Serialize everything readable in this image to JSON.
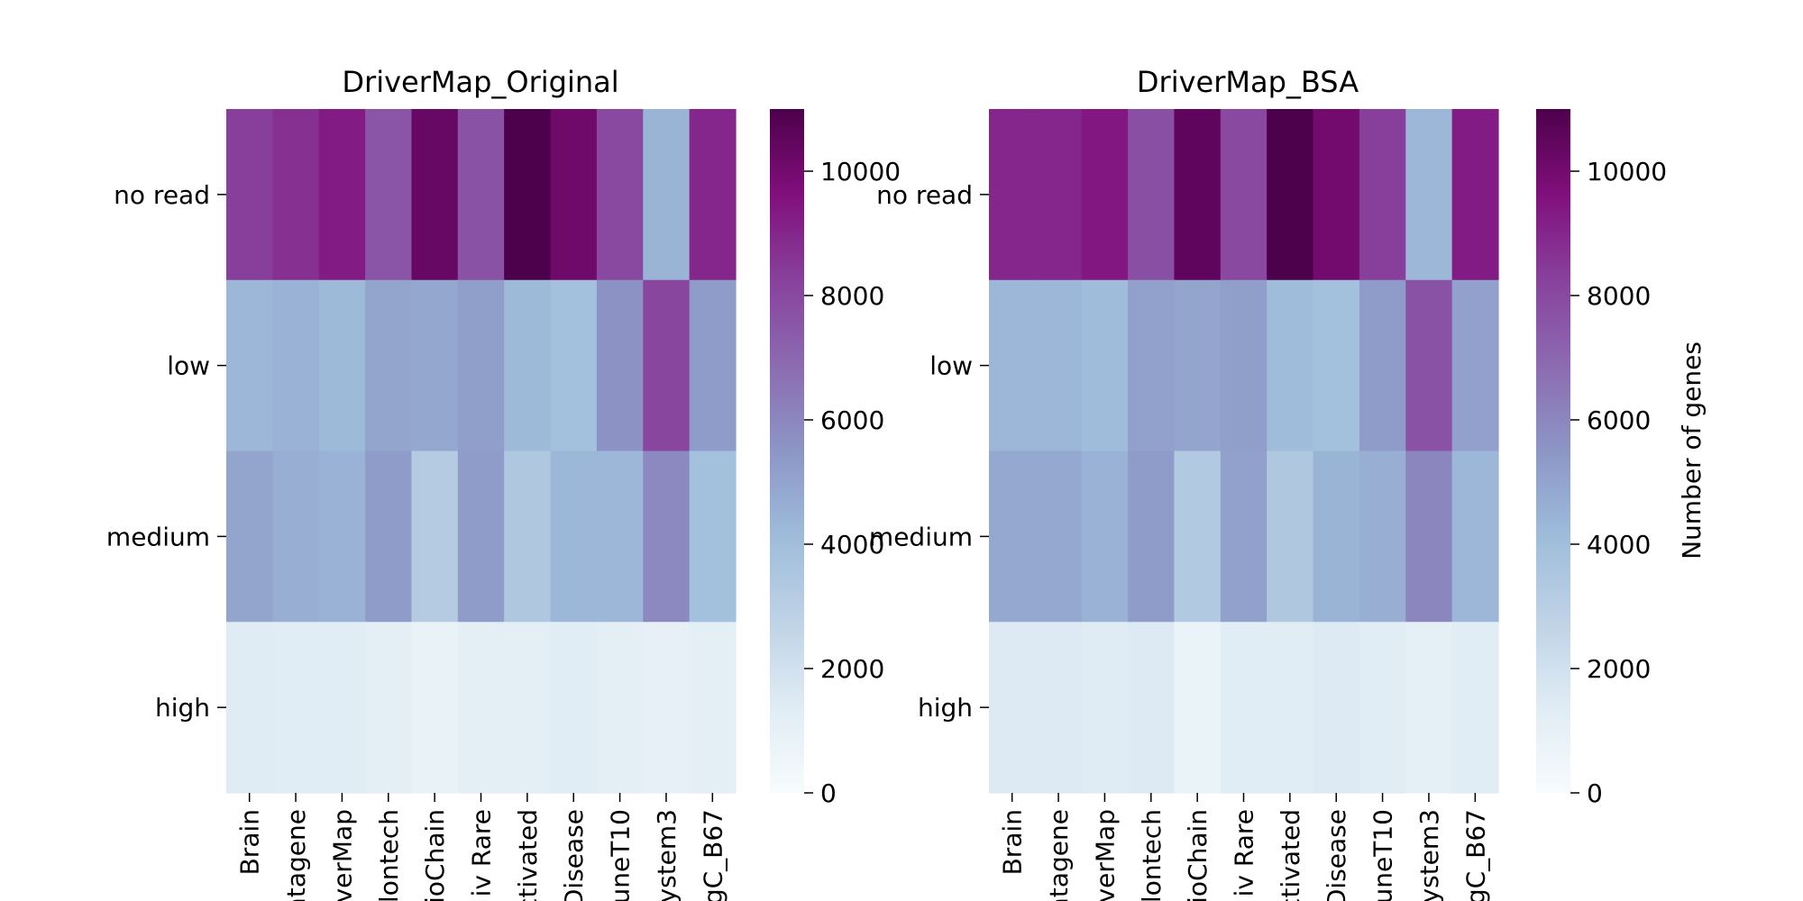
{
  "chart_data": [
    {
      "type": "heatmap",
      "title": "DriverMap_Original",
      "rows": [
        "no read",
        "low",
        "medium",
        "high"
      ],
      "columns": [
        "Brain",
        "atagene",
        "verMap",
        "lontech",
        "ioChain",
        "iv Rare",
        "ctivated",
        "Disease",
        "uneT10",
        "ystem3",
        "gC_B67"
      ],
      "values": [
        [
          8300,
          8700,
          9300,
          7600,
          10300,
          7700,
          11000,
          10100,
          8000,
          4400,
          9000
        ],
        [
          4300,
          4500,
          4200,
          5000,
          4900,
          5200,
          4200,
          3900,
          5600,
          8100,
          5300
        ],
        [
          5000,
          4600,
          4500,
          5300,
          3200,
          5300,
          3400,
          4300,
          4300,
          5900,
          3900
        ],
        [
          1400,
          1300,
          1300,
          1200,
          900,
          1200,
          1200,
          1300,
          1200,
          1000,
          1200
        ]
      ],
      "colorbar": {
        "min": 0,
        "max": 11000,
        "ticks": [
          "0",
          "2000",
          "4000",
          "6000",
          "8000",
          "10000"
        ],
        "label": ""
      }
    },
    {
      "type": "heatmap",
      "title": "DriverMap_BSA",
      "rows": [
        "no read",
        "low",
        "medium",
        "high"
      ],
      "columns": [
        "Brain",
        "atagene",
        "verMap",
        "lontech",
        "ioChain",
        "iv Rare",
        "ctivated",
        "Disease",
        "uneT10",
        "ystem3",
        "gC_B67"
      ],
      "values": [
        [
          9000,
          9000,
          9400,
          7800,
          10500,
          8000,
          11000,
          10000,
          8300,
          4300,
          9300
        ],
        [
          4300,
          4300,
          4100,
          5100,
          5000,
          5200,
          4100,
          3900,
          5300,
          7700,
          5100
        ],
        [
          4800,
          4800,
          4500,
          5300,
          3300,
          5100,
          3400,
          4400,
          4600,
          6000,
          4300
        ],
        [
          1500,
          1500,
          1400,
          1500,
          800,
          1300,
          1300,
          1500,
          1300,
          1100,
          1300
        ]
      ],
      "colorbar": {
        "min": 0,
        "max": 11000,
        "ticks": [
          "0",
          "2000",
          "4000",
          "6000",
          "8000",
          "10000"
        ],
        "label": "Number of genes"
      }
    }
  ]
}
